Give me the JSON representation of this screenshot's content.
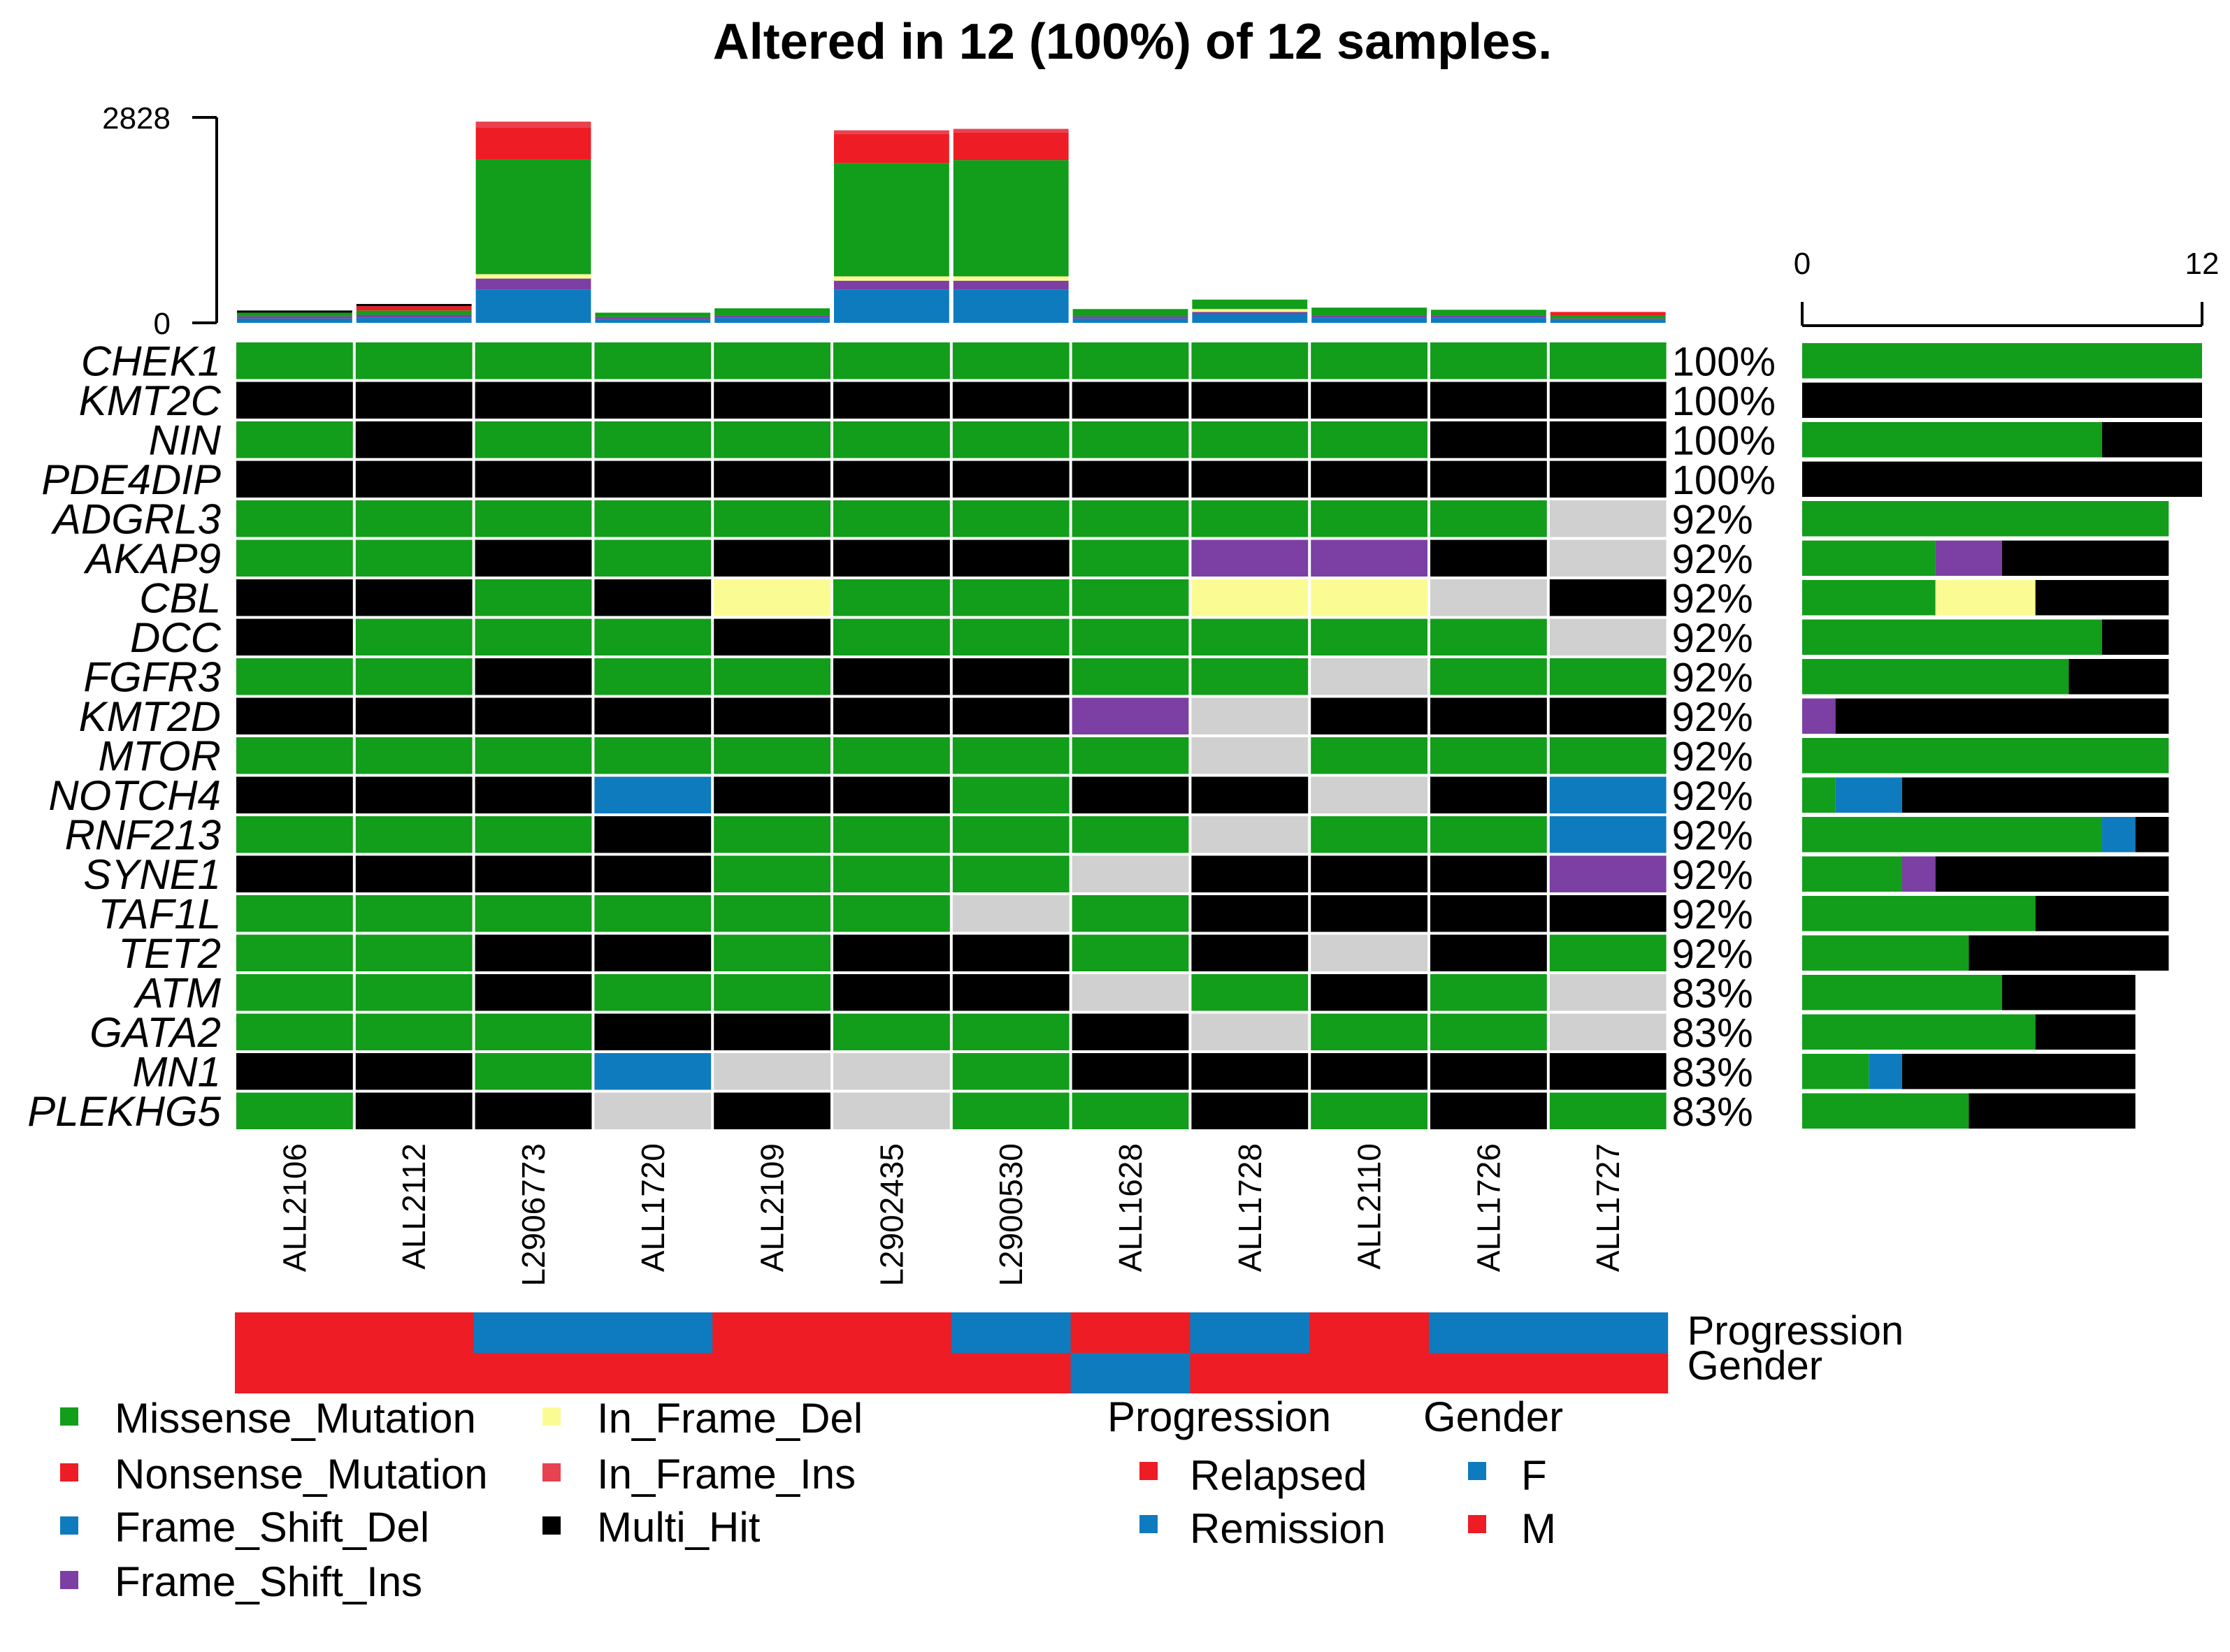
{
  "chart_data": {
    "type": "oncoplot",
    "title": "Altered in 12 (100%) of 12 samples.",
    "samples": [
      "ALL2106",
      "ALL2112",
      "L2906773",
      "ALL1720",
      "ALL2109",
      "L2902435",
      "L2900530",
      "ALL1628",
      "ALL1728",
      "ALL2110",
      "ALL1726",
      "ALL1727"
    ],
    "genes": [
      "CHEK1",
      "KMT2C",
      "NIN",
      "PDE4DIP",
      "ADGRL3",
      "AKAP9",
      "CBL",
      "DCC",
      "FGFR3",
      "KMT2D",
      "MTOR",
      "NOTCH4",
      "RNF213",
      "SYNE1",
      "TAF1L",
      "TET2",
      "ATM",
      "GATA2",
      "MN1",
      "PLEKHG5"
    ],
    "percentages": [
      "100%",
      "100%",
      "100%",
      "100%",
      "92%",
      "92%",
      "92%",
      "92%",
      "92%",
      "92%",
      "92%",
      "92%",
      "92%",
      "92%",
      "92%",
      "92%",
      "83%",
      "83%",
      "83%",
      "83%"
    ],
    "matrix": [
      [
        "MS",
        "MS",
        "MS",
        "MS",
        "MS",
        "MS",
        "MS",
        "MS",
        "MS",
        "MS",
        "MS",
        "MS"
      ],
      [
        "MH",
        "MH",
        "MH",
        "MH",
        "MH",
        "MH",
        "MH",
        "MH",
        "MH",
        "MH",
        "MH",
        "MH"
      ],
      [
        "MS",
        "MH",
        "MS",
        "MS",
        "MS",
        "MS",
        "MS",
        "MS",
        "MS",
        "MS",
        "MH",
        "MH"
      ],
      [
        "MH",
        "MH",
        "MH",
        "MH",
        "MH",
        "MH",
        "MH",
        "MH",
        "MH",
        "MH",
        "MH",
        "MH"
      ],
      [
        "MS",
        "MS",
        "MS",
        "MS",
        "MS",
        "MS",
        "MS",
        "MS",
        "MS",
        "MS",
        "MS",
        "NA"
      ],
      [
        "MS",
        "MS",
        "MH",
        "MS",
        "MH",
        "MH",
        "MH",
        "MS",
        "FSI",
        "FSI",
        "MH",
        "NA"
      ],
      [
        "MH",
        "MH",
        "MS",
        "MH",
        "IFD",
        "MS",
        "MS",
        "MS",
        "IFD",
        "IFD",
        "NA",
        "MH"
      ],
      [
        "MH",
        "MS",
        "MS",
        "MS",
        "MH",
        "MS",
        "MS",
        "MS",
        "MS",
        "MS",
        "MS",
        "NA"
      ],
      [
        "MS",
        "MS",
        "MH",
        "MS",
        "MS",
        "MH",
        "MH",
        "MS",
        "MS",
        "NA",
        "MS",
        "MS"
      ],
      [
        "MH",
        "MH",
        "MH",
        "MH",
        "MH",
        "MH",
        "MH",
        "FSI",
        "NA",
        "MH",
        "MH",
        "MH"
      ],
      [
        "MS",
        "MS",
        "MS",
        "MS",
        "MS",
        "MS",
        "MS",
        "MS",
        "NA",
        "MS",
        "MS",
        "MS"
      ],
      [
        "MH",
        "MH",
        "MH",
        "FSD",
        "MH",
        "MH",
        "MS",
        "MH",
        "MH",
        "NA",
        "MH",
        "FSD"
      ],
      [
        "MS",
        "MS",
        "MS",
        "MH",
        "MS",
        "MS",
        "MS",
        "MS",
        "NA",
        "MS",
        "MS",
        "FSD"
      ],
      [
        "MH",
        "MH",
        "MH",
        "MH",
        "MS",
        "MS",
        "MS",
        "NA",
        "MH",
        "MH",
        "MH",
        "FSI"
      ],
      [
        "MS",
        "MS",
        "MS",
        "MS",
        "MS",
        "MS",
        "NA",
        "MS",
        "MH",
        "MH",
        "MH",
        "MH"
      ],
      [
        "MS",
        "MS",
        "MH",
        "MH",
        "MS",
        "MH",
        "MH",
        "MS",
        "MH",
        "NA",
        "MH",
        "MS"
      ],
      [
        "MS",
        "MS",
        "MH",
        "MS",
        "MS",
        "MH",
        "MH",
        "NA",
        "MS",
        "MH",
        "MS",
        "NA"
      ],
      [
        "MS",
        "MS",
        "MS",
        "MH",
        "MH",
        "MS",
        "MS",
        "MH",
        "NA",
        "MS",
        "MS",
        "NA"
      ],
      [
        "MH",
        "MH",
        "MS",
        "FSD",
        "NA",
        "NA",
        "MS",
        "MH",
        "MH",
        "MH",
        "MH",
        "MH"
      ],
      [
        "MS",
        "MH",
        "MH",
        "NA",
        "MH",
        "NA",
        "MS",
        "MS",
        "MH",
        "MS",
        "MH",
        "MS"
      ]
    ],
    "tmb_axis": {
      "min": 0,
      "max": 2828,
      "labels": [
        "2828",
        "0"
      ]
    },
    "tmb": [
      {
        "MS": 50,
        "FSD": 60,
        "FSI": 30,
        "MH": 30
      },
      {
        "MS": 60,
        "FSD": 70,
        "FSI": 40,
        "NS": 60,
        "MH": 30
      },
      {
        "FSD": 460,
        "FSI": 150,
        "IFD": 60,
        "MS": 1580,
        "NS": 440,
        "IFI": 80
      },
      {
        "MS": 60,
        "FSD": 50,
        "FSI": 30
      },
      {
        "MS": 100,
        "FSD": 70,
        "FSI": 30
      },
      {
        "FSD": 460,
        "FSI": 120,
        "IFD": 60,
        "MS": 1560,
        "NS": 400,
        "IFI": 50
      },
      {
        "FSD": 460,
        "FSI": 120,
        "IFD": 60,
        "MS": 1600,
        "NS": 380,
        "IFI": 50
      },
      {
        "MS": 100,
        "FSD": 60,
        "FSI": 30
      },
      {
        "FSD": 120,
        "MS": 130,
        "FSI": 30,
        "IFD": 40
      },
      {
        "MS": 110,
        "FSD": 70,
        "FSI": 30
      },
      {
        "MS": 80,
        "FSD": 70,
        "FSI": 30
      },
      {
        "FSD": 40,
        "MS": 40,
        "NS": 50,
        "FSI": 20
      }
    ],
    "gene_bar_axis": {
      "min": 0,
      "max": 12,
      "labels": [
        "0",
        "12"
      ]
    },
    "gene_bars": [
      {
        "MS": 12
      },
      {
        "MH": 12
      },
      {
        "MS": 9,
        "MH": 3
      },
      {
        "MH": 12
      },
      {
        "MS": 11
      },
      {
        "MS": 4,
        "FSI": 2,
        "MH": 5
      },
      {
        "MS": 4,
        "IFD": 3,
        "MH": 4
      },
      {
        "MS": 9,
        "MH": 2
      },
      {
        "MS": 8,
        "MH": 3
      },
      {
        "FSI": 1,
        "MH": 10
      },
      {
        "MS": 11
      },
      {
        "MS": 1,
        "FSD": 2,
        "MH": 8
      },
      {
        "MS": 9,
        "FSD": 1,
        "MH": 1
      },
      {
        "MS": 3,
        "FSI": 1,
        "MH": 7
      },
      {
        "MS": 7,
        "MH": 4
      },
      {
        "MS": 5,
        "MH": 6
      },
      {
        "MS": 6,
        "MH": 4
      },
      {
        "MS": 7,
        "MH": 3
      },
      {
        "MS": 2,
        "FSD": 1,
        "MH": 7
      },
      {
        "MS": 5,
        "MH": 5
      }
    ],
    "annotations": {
      "Progression": [
        "Relapsed",
        "Relapsed",
        "Remission",
        "Remission",
        "Relapsed",
        "Relapsed",
        "Remission",
        "Relapsed",
        "Remission",
        "Relapsed",
        "Remission",
        "Remission"
      ],
      "Gender": [
        "M",
        "M",
        "M",
        "M",
        "M",
        "M",
        "M",
        "F",
        "M",
        "M",
        "M",
        "M"
      ]
    },
    "annotation_labels": [
      "Progression",
      "Gender"
    ],
    "legend": [
      {
        "code": "MS",
        "label": "Missense_Mutation"
      },
      {
        "code": "NS",
        "label": "Nonsense_Mutation"
      },
      {
        "code": "FSD",
        "label": "Frame_Shift_Del"
      },
      {
        "code": "FSI",
        "label": "Frame_Shift_Ins"
      },
      {
        "code": "IFD",
        "label": "In_Frame_Del"
      },
      {
        "code": "IFI",
        "label": "In_Frame_Ins"
      },
      {
        "code": "MH",
        "label": "Multi_Hit"
      }
    ],
    "progression_legend": {
      "title": "Progression",
      "items": [
        {
          "label": "Relapsed",
          "color": "#ee1c24"
        },
        {
          "label": "Remission",
          "color": "#0f7bbf"
        }
      ]
    },
    "gender_legend": {
      "title": "Gender",
      "items": [
        {
          "label": "F",
          "color": "#0f7bbf"
        },
        {
          "label": "M",
          "color": "#ee1c24"
        }
      ]
    },
    "colors": {
      "MS": "#129d1b",
      "NS": "#ee1c24",
      "FSD": "#0f7bbf",
      "FSI": "#7c3fa3",
      "IFD": "#fbfb94",
      "IFI": "#e8414f",
      "MH": "#000000",
      "NA": "#d0d0d0"
    }
  }
}
